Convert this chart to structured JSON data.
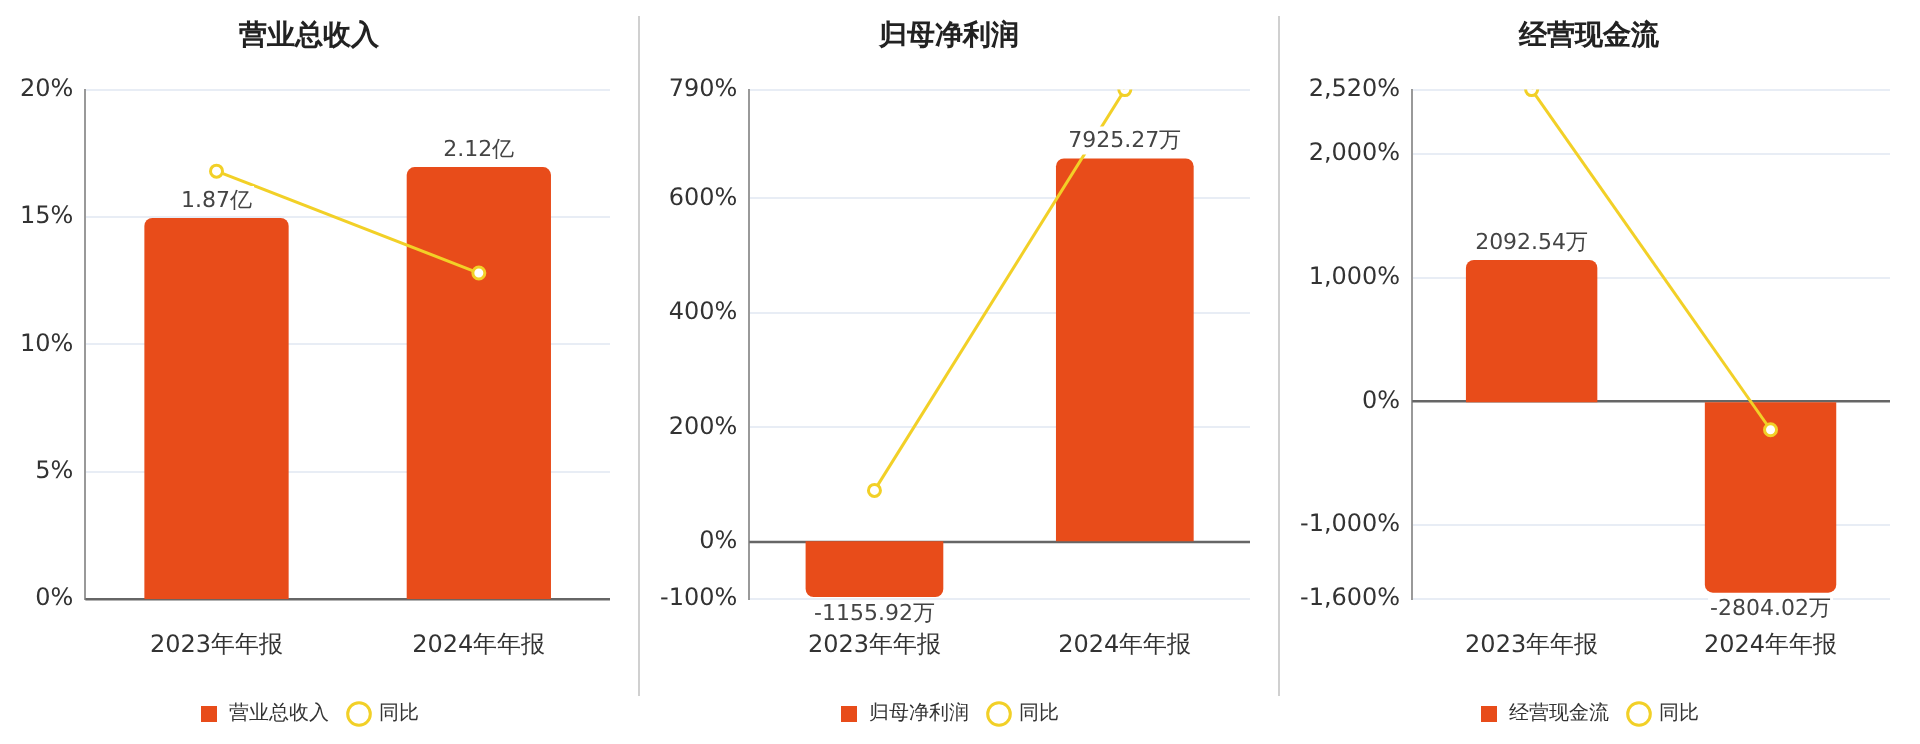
{
  "chart_data": [
    {
      "type": "bar",
      "title": "营业总收入",
      "categories": [
        "2023年年报",
        "2024年年报"
      ],
      "series": [
        {
          "name": "营业总收入",
          "axis": "y2",
          "color": "#e84c1a",
          "values": [
            1.87,
            2.12
          ],
          "value_labels": [
            "1.87亿",
            "2.12亿"
          ]
        },
        {
          "name": "同比",
          "type": "line",
          "color": "#f2d027",
          "values": [
            16.8,
            12.8
          ]
        }
      ],
      "ylim": [
        0,
        20
      ],
      "yticks": [
        {
          "value": 0,
          "label": "0%"
        },
        {
          "value": 5,
          "label": "5%"
        },
        {
          "value": 10,
          "label": "10%"
        },
        {
          "value": 15,
          "label": "15%"
        },
        {
          "value": 20,
          "label": "20%"
        }
      ],
      "y2lim": [
        0,
        2.5
      ],
      "tick_labels": "xy",
      "grid": "y",
      "legend": "bottom",
      "marker": "circle"
    },
    {
      "type": "bar",
      "title": "归母净利润",
      "categories": [
        "2023年年报",
        "2024年年报"
      ],
      "series": [
        {
          "name": "归母净利润",
          "axis": "y2",
          "color": "#e84c1a",
          "values": [
            -1155.92,
            7925.27
          ],
          "value_labels": [
            "-1155.92万",
            "7925.27万"
          ]
        },
        {
          "name": "同比",
          "type": "line",
          "color": "#f2d027",
          "values": [
            90,
            790
          ]
        }
      ],
      "ylim": [
        -100,
        790
      ],
      "yticks": [
        {
          "value": -100,
          "label": "-100%"
        },
        {
          "value": 0,
          "label": "0%"
        },
        {
          "value": 200,
          "label": "200%"
        },
        {
          "value": 400,
          "label": "400%"
        },
        {
          "value": 600,
          "label": "600%"
        },
        {
          "value": 790,
          "label": "790%"
        }
      ],
      "y2lim": [
        -1200,
        9350
      ],
      "tick_labels": "xy",
      "grid": "y",
      "legend": "bottom",
      "marker": "circle"
    },
    {
      "type": "bar",
      "title": "经营现金流",
      "categories": [
        "2023年年报",
        "2024年年报"
      ],
      "series": [
        {
          "name": "经营现金流",
          "axis": "y2",
          "color": "#e84c1a",
          "values": [
            2092.54,
            -2804.02
          ],
          "value_labels": [
            "2092.54万",
            "-2804.02万"
          ]
        },
        {
          "name": "同比",
          "type": "line",
          "color": "#f2d027",
          "values": [
            2520,
            -230
          ]
        }
      ],
      "ylim": [
        -1600,
        2520
      ],
      "yticks": [
        {
          "value": -1600,
          "label": "-1,600%"
        },
        {
          "value": -1000,
          "label": "-1,000%"
        },
        {
          "value": 0,
          "label": "0%"
        },
        {
          "value": 1000,
          "label": "1,000%"
        },
        {
          "value": 2000,
          "label": "2,000%"
        },
        {
          "value": 2520,
          "label": "2,520%"
        }
      ],
      "y2lim": [
        -2900,
        4600
      ],
      "tick_labels": "xy",
      "grid": "y",
      "legend": "bottom",
      "marker": "circle"
    }
  ]
}
